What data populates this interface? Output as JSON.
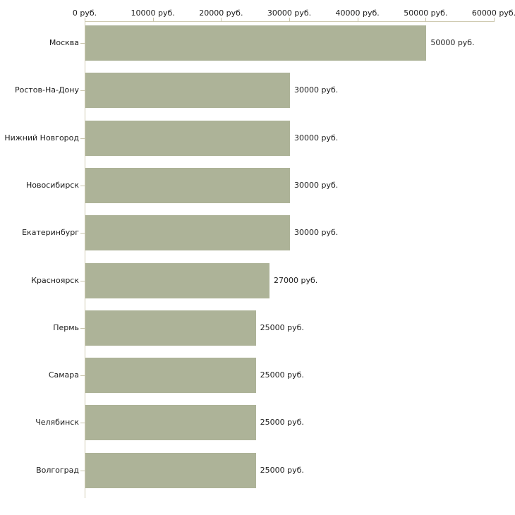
{
  "page": {
    "background_color": "#ffffff",
    "text_color": "#1c1c1c"
  },
  "chart_data": {
    "type": "bar",
    "orientation": "horizontal",
    "title": "",
    "xlabel": "",
    "ylabel": "",
    "categories": [
      "Москва",
      "Ростов-На-Дону",
      "Нижний Новгород",
      "Новосибирск",
      "Екатеринбург",
      "Красноярск",
      "Пермь",
      "Самара",
      "Челябинск",
      "Волгоград"
    ],
    "values": [
      50000,
      30000,
      30000,
      30000,
      30000,
      27000,
      25000,
      25000,
      25000,
      25000
    ],
    "value_labels": [
      "50000 руб.",
      "30000 руб.",
      "30000 руб.",
      "30000 руб.",
      "30000 руб.",
      "27000 руб.",
      "25000 руб.",
      "25000 руб.",
      "25000 руб.",
      "25000 руб."
    ],
    "x_tick_labels": [
      "0 руб.",
      "10000 руб.",
      "20000 руб.",
      "30000 руб.",
      "40000 руб.",
      "50000 руб.",
      "60000 руб."
    ],
    "x_tick_values": [
      0,
      10000,
      20000,
      30000,
      40000,
      50000,
      60000
    ],
    "xlim": [
      0,
      60000
    ],
    "grid": false,
    "legend": "none",
    "bar_color": "#adb398",
    "axis_color": "#d0cbb2",
    "text_color": "#1c1c1c"
  }
}
